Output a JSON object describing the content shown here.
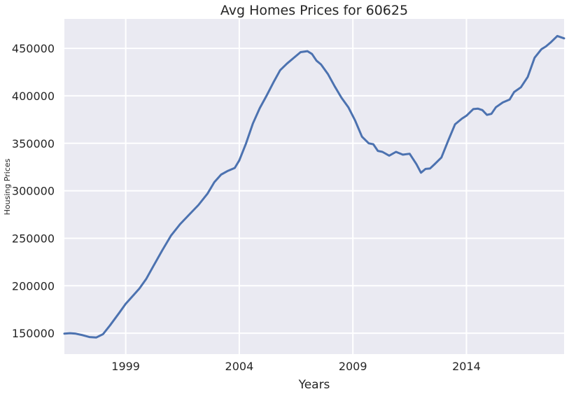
{
  "chart_data": {
    "type": "line",
    "title": "Avg Homes Prices for 60625",
    "xlabel": "Years",
    "ylabel": "Housing Prices",
    "xlim": [
      1996.3,
      2018.3
    ],
    "ylim": [
      128000,
      481000
    ],
    "x_ticks": [
      1999,
      2004,
      2009,
      2014
    ],
    "x_tick_labels": [
      "1999",
      "2004",
      "2009",
      "2014"
    ],
    "y_ticks": [
      150000,
      200000,
      250000,
      300000,
      350000,
      400000,
      450000
    ],
    "y_tick_labels": [
      "150000",
      "200000",
      "250000",
      "300000",
      "350000",
      "400000",
      "450000"
    ],
    "grid": true,
    "series": [
      {
        "color": "#4c72b0",
        "x": [
          1996.3,
          1996.55,
          1996.8,
          1997.1,
          1997.4,
          1997.7,
          1998.0,
          1998.3,
          1998.7,
          1999.0,
          1999.3,
          1999.6,
          1999.9,
          2000.2,
          2000.6,
          2001.0,
          2001.4,
          2001.8,
          2002.2,
          2002.6,
          2002.9,
          2003.2,
          2003.5,
          2003.8,
          2004.0,
          2004.3,
          2004.6,
          2004.9,
          2005.2,
          2005.5,
          2005.8,
          2006.1,
          2006.4,
          2006.7,
          2007.0,
          2007.2,
          2007.4,
          2007.6,
          2007.9,
          2008.2,
          2008.5,
          2008.8,
          2009.1,
          2009.4,
          2009.7,
          2009.9,
          2010.1,
          2010.3,
          2010.6,
          2010.9,
          2011.2,
          2011.5,
          2011.8,
          2012.0,
          2012.2,
          2012.4,
          2012.6,
          2012.9,
          2013.2,
          2013.5,
          2013.8,
          2014.0,
          2014.3,
          2014.5,
          2014.7,
          2014.9,
          2015.1,
          2015.3,
          2015.6,
          2015.9,
          2016.1,
          2016.4,
          2016.7,
          2017.0,
          2017.3,
          2017.5,
          2017.7,
          2018.0,
          2018.3
        ],
        "y": [
          149500,
          150000,
          149500,
          148000,
          146000,
          145500,
          149000,
          158000,
          171000,
          181000,
          189000,
          197000,
          207000,
          220000,
          237000,
          253000,
          265000,
          275000,
          285000,
          297000,
          309000,
          317000,
          321000,
          324000,
          332000,
          350000,
          371000,
          387000,
          400000,
          414000,
          427000,
          434000,
          440000,
          446000,
          447000,
          444000,
          437000,
          433000,
          423000,
          410000,
          398000,
          388000,
          374000,
          357000,
          350000,
          349000,
          342000,
          341000,
          337000,
          341000,
          338000,
          339000,
          328000,
          319000,
          323000,
          323500,
          328000,
          335000,
          353000,
          370000,
          376000,
          379000,
          386000,
          386500,
          385000,
          380000,
          381000,
          388000,
          393000,
          396000,
          404000,
          409000,
          420000,
          440000,
          449000,
          452000,
          456000,
          463000,
          460500
        ]
      }
    ]
  }
}
